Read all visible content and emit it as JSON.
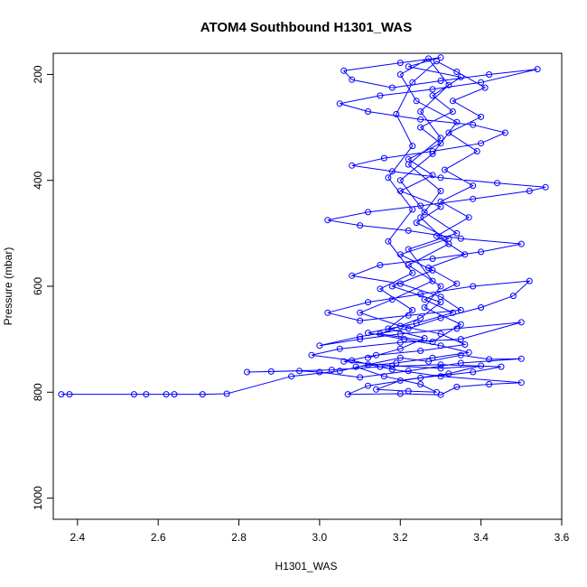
{
  "chart_data": {
    "type": "line",
    "title": "ATOM4 Southbound H1301_WAS",
    "xlabel": "H1301_WAS",
    "ylabel": "Pressure (mbar)",
    "xlim": [
      2.34,
      3.6
    ],
    "ylim": [
      1040,
      160
    ],
    "y_reversed": true,
    "x_ticks": [
      2.4,
      2.6,
      2.8,
      3.0,
      3.2,
      3.4,
      3.6
    ],
    "x_tick_labels": [
      "2.4",
      "2.6",
      "2.8",
      "3.0",
      "3.2",
      "3.4",
      "3.6"
    ],
    "y_ticks": [
      200,
      400,
      600,
      800,
      1000
    ],
    "y_tick_labels": [
      "200",
      "400",
      "600",
      "800",
      "1000"
    ],
    "grid": false,
    "line_color": "#0000ff",
    "marker": "open-circle",
    "series": [
      {
        "points": [
          [
            2.36,
            804
          ],
          [
            2.38,
            804
          ],
          [
            2.54,
            804
          ],
          [
            2.57,
            804
          ],
          [
            2.62,
            804
          ],
          [
            2.64,
            804
          ],
          [
            2.71,
            804
          ],
          [
            2.77,
            803
          ],
          [
            2.93,
            770
          ],
          [
            3.05,
            760
          ],
          [
            3.12,
            748
          ],
          [
            3.2,
            735
          ],
          [
            3.27,
            742
          ],
          [
            3.35,
            730
          ],
          [
            3.42,
            738
          ],
          [
            3.5,
            737
          ],
          [
            3.35,
            745
          ],
          [
            3.22,
            760
          ],
          [
            3.1,
            772
          ],
          [
            3.0,
            762
          ],
          [
            2.95,
            760
          ],
          [
            2.82,
            762
          ],
          [
            2.88,
            761
          ],
          [
            3.03,
            758
          ],
          [
            3.15,
            752
          ],
          [
            3.3,
            748
          ],
          [
            3.45,
            752
          ],
          [
            3.38,
            762
          ],
          [
            3.25,
            773
          ],
          [
            3.12,
            788
          ],
          [
            3.07,
            804
          ],
          [
            3.2,
            803
          ],
          [
            3.3,
            805
          ],
          [
            3.34,
            790
          ],
          [
            3.42,
            785
          ],
          [
            3.5,
            782
          ],
          [
            3.3,
            770
          ],
          [
            3.18,
            757
          ],
          [
            3.08,
            740
          ],
          [
            2.98,
            730
          ],
          [
            3.05,
            718
          ],
          [
            3.2,
            706
          ],
          [
            3.35,
            700
          ],
          [
            3.5,
            668
          ],
          [
            3.34,
            680
          ],
          [
            3.2,
            690
          ],
          [
            3.1,
            700
          ],
          [
            3.0,
            712
          ],
          [
            3.1,
            695
          ],
          [
            3.22,
            680
          ],
          [
            3.3,
            660
          ],
          [
            3.4,
            640
          ],
          [
            3.48,
            618
          ],
          [
            3.52,
            590
          ],
          [
            3.38,
            600
          ],
          [
            3.25,
            615
          ],
          [
            3.12,
            630
          ],
          [
            3.02,
            650
          ],
          [
            3.1,
            665
          ],
          [
            3.22,
            655
          ],
          [
            3.35,
            645
          ],
          [
            3.3,
            620
          ],
          [
            3.2,
            595
          ],
          [
            3.08,
            580
          ],
          [
            3.15,
            560
          ],
          [
            3.28,
            548
          ],
          [
            3.4,
            535
          ],
          [
            3.5,
            520
          ],
          [
            3.35,
            510
          ],
          [
            3.22,
            495
          ],
          [
            3.1,
            485
          ],
          [
            3.02,
            475
          ],
          [
            3.12,
            460
          ],
          [
            3.25,
            448
          ],
          [
            3.38,
            435
          ],
          [
            3.52,
            420
          ],
          [
            3.56,
            413
          ],
          [
            3.44,
            405
          ],
          [
            3.3,
            395
          ],
          [
            3.18,
            383
          ],
          [
            3.08,
            372
          ],
          [
            3.16,
            358
          ],
          [
            3.28,
            345
          ],
          [
            3.4,
            330
          ],
          [
            3.46,
            310
          ],
          [
            3.38,
            295
          ],
          [
            3.25,
            285
          ],
          [
            3.12,
            270
          ],
          [
            3.05,
            255
          ],
          [
            3.15,
            240
          ],
          [
            3.28,
            228
          ],
          [
            3.4,
            215
          ],
          [
            3.54,
            190
          ],
          [
            3.42,
            200
          ],
          [
            3.3,
            212
          ],
          [
            3.18,
            225
          ],
          [
            3.08,
            210
          ],
          [
            3.06,
            193
          ],
          [
            3.2,
            178
          ],
          [
            3.3,
            168
          ],
          [
            3.22,
            185
          ],
          [
            3.35,
            205
          ],
          [
            3.28,
            240
          ],
          [
            3.33,
            270
          ],
          [
            3.25,
            300
          ],
          [
            3.3,
            330
          ],
          [
            3.22,
            360
          ],
          [
            3.28,
            390
          ],
          [
            3.2,
            420
          ],
          [
            3.3,
            450
          ],
          [
            3.24,
            480
          ],
          [
            3.32,
            510
          ],
          [
            3.2,
            540
          ],
          [
            3.28,
            570
          ],
          [
            3.18,
            600
          ],
          [
            3.3,
            630
          ],
          [
            3.25,
            660
          ],
          [
            3.15,
            690
          ],
          [
            3.28,
            705
          ],
          [
            3.35,
            672
          ],
          [
            3.26,
            640
          ],
          [
            3.3,
            600
          ],
          [
            3.22,
            560
          ],
          [
            3.32,
            520
          ],
          [
            3.25,
            470
          ],
          [
            3.3,
            420
          ],
          [
            3.22,
            370
          ],
          [
            3.3,
            320
          ],
          [
            3.25,
            270
          ],
          [
            3.32,
            220
          ],
          [
            3.27,
            170
          ],
          [
            3.2,
            200
          ],
          [
            3.24,
            250
          ],
          [
            3.34,
            290
          ],
          [
            3.28,
            350
          ],
          [
            3.2,
            400
          ],
          [
            3.26,
            460
          ],
          [
            3.34,
            500
          ],
          [
            3.22,
            530
          ],
          [
            3.28,
            590
          ],
          [
            3.18,
            625
          ],
          [
            3.1,
            650
          ],
          [
            3.2,
            675
          ],
          [
            3.3,
            690
          ],
          [
            3.36,
            710
          ],
          [
            3.25,
            722
          ],
          [
            3.14,
            730
          ],
          [
            3.06,
            742
          ],
          [
            3.18,
            750
          ],
          [
            3.3,
            755
          ],
          [
            3.4,
            750
          ],
          [
            3.32,
            765
          ],
          [
            3.2,
            778
          ],
          [
            3.14,
            795
          ],
          [
            3.22,
            798
          ],
          [
            3.29,
            800
          ],
          [
            3.25,
            785
          ],
          [
            3.16,
            770
          ],
          [
            3.09,
            752
          ],
          [
            3.19,
            745
          ],
          [
            3.28,
            735
          ],
          [
            3.37,
            725
          ],
          [
            3.3,
            712
          ],
          [
            3.21,
            700
          ],
          [
            3.12,
            688
          ],
          [
            3.24,
            670
          ],
          [
            3.33,
            650
          ],
          [
            3.26,
            625
          ],
          [
            3.34,
            595
          ],
          [
            3.27,
            565
          ],
          [
            3.36,
            540
          ],
          [
            3.29,
            505
          ],
          [
            3.37,
            470
          ],
          [
            3.3,
            440
          ],
          [
            3.38,
            410
          ],
          [
            3.31,
            380
          ],
          [
            3.39,
            345
          ],
          [
            3.32,
            310
          ],
          [
            3.4,
            280
          ],
          [
            3.33,
            250
          ],
          [
            3.41,
            225
          ],
          [
            3.34,
            195
          ],
          [
            3.29,
            175
          ],
          [
            3.23,
            215
          ],
          [
            3.19,
            275
          ],
          [
            3.23,
            335
          ],
          [
            3.17,
            395
          ],
          [
            3.23,
            455
          ],
          [
            3.17,
            515
          ],
          [
            3.23,
            575
          ],
          [
            3.15,
            605
          ],
          [
            3.23,
            645
          ],
          [
            3.17,
            680
          ],
          [
            3.26,
            698
          ],
          [
            3.2,
            718
          ],
          [
            3.12,
            735
          ]
        ]
      }
    ]
  }
}
